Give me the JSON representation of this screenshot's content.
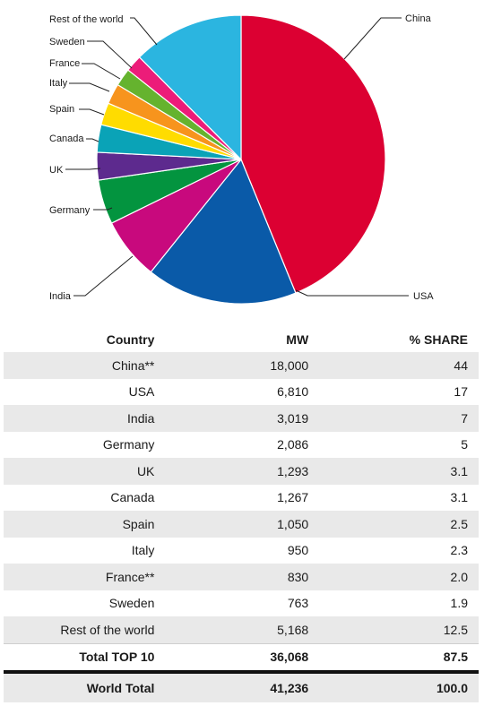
{
  "chart_data": {
    "type": "pie",
    "slices": [
      {
        "label": "China",
        "value": 44,
        "color": "#dc0032"
      },
      {
        "label": "USA",
        "value": 17,
        "color": "#0a5aa8"
      },
      {
        "label": "India",
        "value": 7,
        "color": "#c8097d"
      },
      {
        "label": "Germany",
        "value": 5,
        "color": "#03943f"
      },
      {
        "label": "UK",
        "value": 3.1,
        "color": "#5d2a8e"
      },
      {
        "label": "Canada",
        "value": 3.1,
        "color": "#0aa3b7"
      },
      {
        "label": "Spain",
        "value": 2.5,
        "color": "#ffdc00"
      },
      {
        "label": "Italy",
        "value": 2.3,
        "color": "#f7941d"
      },
      {
        "label": "France",
        "value": 2.0,
        "color": "#65b32e"
      },
      {
        "label": "Sweden",
        "value": 1.9,
        "color": "#ec1c79"
      },
      {
        "label": "Rest of the world",
        "value": 12.5,
        "color": "#2bb5e0"
      }
    ]
  },
  "table": {
    "headers": [
      "Country",
      "MW",
      "% SHARE"
    ],
    "rows": [
      [
        "China**",
        "18,000",
        "44"
      ],
      [
        "USA",
        "6,810",
        "17"
      ],
      [
        "India",
        "3,019",
        "7"
      ],
      [
        "Germany",
        "2,086",
        "5"
      ],
      [
        "UK",
        "1,293",
        "3.1"
      ],
      [
        "Canada",
        "1,267",
        "3.1"
      ],
      [
        "Spain",
        "1,050",
        "2.5"
      ],
      [
        "Italy",
        "950",
        "2.3"
      ],
      [
        "France**",
        "830",
        "2.0"
      ],
      [
        "Sweden",
        "763",
        "1.9"
      ],
      [
        "Rest of the world",
        "5,168",
        "12.5"
      ]
    ],
    "total_row": [
      "Total TOP 10",
      "36,068",
      "87.5"
    ],
    "world_row": [
      "World Total",
      "41,236",
      "100.0"
    ]
  }
}
